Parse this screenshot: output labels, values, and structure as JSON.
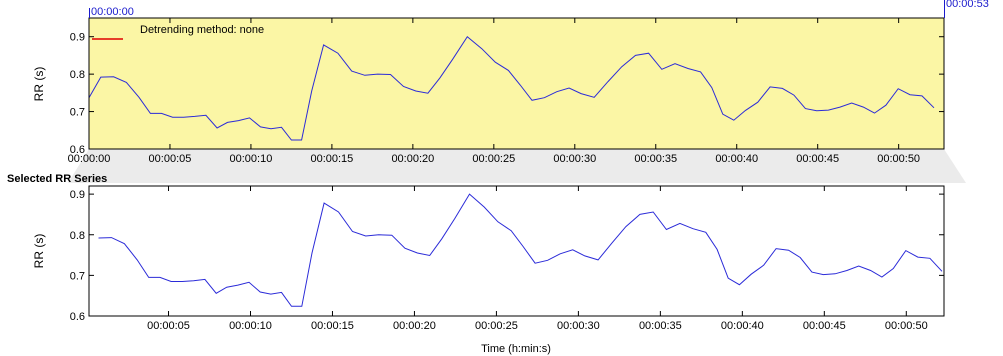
{
  "top_chart": {
    "start_marker": "00:00:00",
    "end_marker": "00:00:53",
    "legend_text": "Detrending method: none",
    "ylabel": "RR (s)",
    "background_color": "#fbf6a5",
    "line_color": "#2b2bd8",
    "legend_color": "#e00000",
    "marker_color": "#1a1acc"
  },
  "bottom_chart": {
    "title": "Selected RR Series",
    "ylabel": "RR (s)",
    "xlabel": "Time (h:min:s)",
    "line_color": "#2b2bd8"
  },
  "chart_data": [
    {
      "type": "line",
      "x_unit": "seconds",
      "xlim": [
        0,
        52.8
      ],
      "ylim": [
        0.6,
        0.95
      ],
      "xticks": [
        0,
        5,
        10,
        15,
        20,
        25,
        30,
        35,
        40,
        45,
        50
      ],
      "xtick_labels": [
        "00:00:00",
        "00:00:05",
        "00:00:10",
        "00:00:15",
        "00:00:20",
        "00:00:25",
        "00:00:30",
        "00:00:35",
        "00:00:40",
        "00:00:45",
        "00:00:50"
      ],
      "yticks": [
        0.6,
        0.7,
        0.8,
        0.9
      ],
      "ytick_labels": [
        "0.6",
        "0.7",
        "0.8",
        "0.9"
      ],
      "ylabel": "RR (s)",
      "grid": false,
      "series": [
        {
          "x": [
            0.0,
            0.73,
            1.52,
            2.31,
            3.09,
            3.79,
            4.48,
            5.16,
            5.84,
            6.53,
            7.22,
            7.91,
            8.55,
            9.23,
            9.91,
            10.59,
            11.24,
            11.89,
            12.5,
            13.13,
            13.75,
            14.49,
            15.37,
            16.22,
            17.03,
            17.82,
            18.62,
            19.42,
            20.18,
            20.93,
            21.67,
            22.46,
            23.36,
            24.26,
            25.09,
            25.9,
            26.63,
            27.36,
            28.12,
            28.89,
            29.65,
            30.39,
            31.2,
            32.05,
            32.9,
            33.75,
            34.56,
            35.37,
            36.19,
            36.99,
            37.77,
            38.46,
            39.14,
            39.82,
            40.54,
            41.3,
            42.06,
            42.82,
            43.53,
            44.24,
            44.94,
            45.66,
            46.38,
            47.1,
            47.82,
            48.51,
            49.21,
            49.97,
            50.7,
            51.44,
            52.18
          ]
        }
      ]
    },
    {
      "type": "line",
      "x_unit": "seconds",
      "xlim": [
        0.15,
        52.3
      ],
      "ylim": [
        0.6,
        0.92
      ],
      "xticks": [
        0,
        5,
        10,
        15,
        20,
        25,
        30,
        35,
        40,
        45,
        50
      ],
      "xtick_labels": [
        "00:00:00",
        "00:00:05",
        "00:00:10",
        "00:00:15",
        "00:00:20",
        "00:00:25",
        "00:00:30",
        "00:00:35",
        "00:00:40",
        "00:00:45",
        "00:00:50"
      ],
      "yticks": [
        0.6,
        0.7,
        0.8,
        0.9
      ],
      "ytick_labels": [
        "0.6",
        "0.7",
        "0.8",
        "0.9"
      ],
      "ylabel": "RR (s)",
      "xlabel": "Time (h:min:s)",
      "title": "Selected RR Series",
      "grid": false,
      "series": [
        {
          "x": [
            0.0,
            0.73,
            1.52,
            2.31,
            3.09,
            3.79,
            4.48,
            5.16,
            5.84,
            6.53,
            7.22,
            7.91,
            8.55,
            9.23,
            9.91,
            10.59,
            11.24,
            11.89,
            12.5,
            13.13,
            13.75,
            14.49,
            15.37,
            16.22,
            17.03,
            17.82,
            18.62,
            19.42,
            20.18,
            20.93,
            21.67,
            22.46,
            23.36,
            24.26,
            25.09,
            25.9,
            26.63,
            27.36,
            28.12,
            28.89,
            29.65,
            30.39,
            31.2,
            32.05,
            32.9,
            33.75,
            34.56,
            35.37,
            36.19,
            36.99,
            37.77,
            38.46,
            39.14,
            39.82,
            40.54,
            41.3,
            42.06,
            42.82,
            43.53,
            44.24,
            44.94,
            45.66,
            46.38,
            47.1,
            47.82,
            48.51,
            49.21,
            49.97,
            50.7,
            51.44,
            52.18
          ],
          "y": [
            0.737,
            0.792,
            0.793,
            0.778,
            0.738,
            0.695,
            0.695,
            0.685,
            0.685,
            0.687,
            0.69,
            0.656,
            0.671,
            0.676,
            0.683,
            0.659,
            0.654,
            0.658,
            0.624,
            0.624,
            0.755,
            0.878,
            0.856,
            0.808,
            0.797,
            0.8,
            0.799,
            0.767,
            0.755,
            0.749,
            0.79,
            0.84,
            0.9,
            0.868,
            0.832,
            0.81,
            0.771,
            0.73,
            0.737,
            0.753,
            0.763,
            0.748,
            0.738,
            0.78,
            0.82,
            0.85,
            0.856,
            0.813,
            0.828,
            0.815,
            0.806,
            0.764,
            0.693,
            0.677,
            0.703,
            0.725,
            0.766,
            0.762,
            0.744,
            0.708,
            0.702,
            0.704,
            0.712,
            0.723,
            0.712,
            0.696,
            0.717,
            0.761,
            0.745,
            0.742,
            0.71
          ]
        }
      ]
    }
  ]
}
